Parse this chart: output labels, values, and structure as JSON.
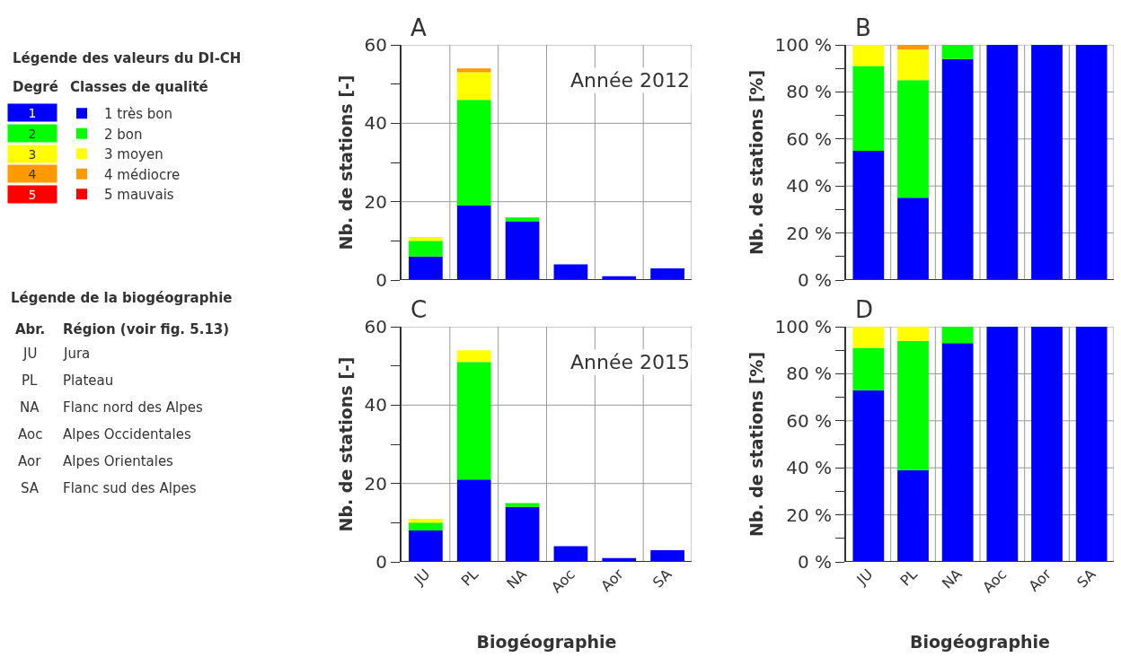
{
  "chart_data": [
    {
      "type": "bar",
      "title": "A",
      "subtitle": "Année 2012",
      "ylabel": "Nb. de stations [-]",
      "categories": [
        null,
        null,
        null,
        null,
        null,
        null
      ],
      "stacked": true,
      "grid": true,
      "legend": "left",
      "legend_title": "Légende des valeurs du DI-CH",
      "annotations": [
        "Degré",
        "Classes de qualité",
        "1",
        "2",
        "3",
        "4",
        "5",
        "Légende de la biogéographie",
        "Abr.",
        "Région (voir fig. 5.13)",
        "JU",
        "Jura",
        "PL",
        "Plateau",
        "NA",
        "Flanc nord des Alpes",
        "Aoc",
        "Alpes Occidentales",
        "Aor",
        "Alpes Orientales",
        "SA",
        "Flanc sud des Alpes"
      ],
      "ylim": [
        0,
        60
      ],
      "yticks": [
        0,
        {
          "value": 10,
          "label": null
        },
        20,
        {
          "value": 30,
          "label": null
        },
        40,
        {
          "value": 50,
          "label": null
        },
        60
      ],
      "series": [
        {
          "name": "1 très bon",
          "color": "#0000ff",
          "values": [
            6,
            19,
            15,
            4,
            1,
            3
          ]
        },
        {
          "name": "2 bon",
          "color": "#00ff00",
          "values": [
            4,
            27,
            1,
            null,
            null,
            null
          ]
        },
        {
          "name": "3 moyen",
          "color": "#ffff00",
          "values": [
            1,
            7,
            null,
            null,
            null,
            null
          ]
        },
        {
          "name": "4 médiocre",
          "color": "#ff9900",
          "values": [
            null,
            1,
            null,
            null,
            null,
            null
          ]
        },
        {
          "name": "5 mauvais",
          "color": "#ff0000",
          "values": [
            null,
            null,
            null,
            null,
            null,
            null
          ]
        }
      ]
    },
    {
      "type": "bar",
      "title": "B",
      "ylabel": "Nb. de stations [%]",
      "categories": [
        null,
        null,
        null,
        null,
        null,
        null
      ],
      "stacked": true,
      "grid": true,
      "ylim": [
        0,
        100
      ],
      "yticks": [
        {
          "value": 0,
          "label": "0 %"
        },
        {
          "value": 10,
          "label": null
        },
        {
          "value": 20,
          "label": "20 %"
        },
        {
          "value": 30,
          "label": null
        },
        {
          "value": 40,
          "label": "40 %"
        },
        {
          "value": 50,
          "label": null
        },
        {
          "value": 60,
          "label": "60 %"
        },
        {
          "value": 70,
          "label": null
        },
        {
          "value": 80,
          "label": "80 %"
        },
        {
          "value": 90,
          "label": null
        },
        {
          "value": 100,
          "label": "100 %"
        }
      ],
      "series": [
        {
          "color": "#0000ff",
          "values": [
            55,
            35,
            94,
            100,
            100,
            100
          ]
        },
        {
          "color": "#00ff00",
          "values": [
            36,
            50,
            6,
            null,
            null,
            null
          ]
        },
        {
          "color": "#ffff00",
          "values": [
            9,
            13,
            null,
            null,
            null,
            null
          ]
        },
        {
          "color": "#ff9900",
          "values": [
            null,
            2,
            null,
            null,
            null,
            null
          ]
        }
      ]
    },
    {
      "type": "bar",
      "title": "C",
      "subtitle": "Année 2015",
      "ylabel": "Nb. de stations [-]",
      "xlabel": "Biogéographie",
      "categories": [
        "JU",
        "PL",
        "NA",
        "Aoc",
        "Aor",
        "SA"
      ],
      "stacked": true,
      "grid": true,
      "ylim": [
        0,
        60
      ],
      "yticks": [
        0,
        {
          "value": 10,
          "label": null
        },
        20,
        {
          "value": 30,
          "label": null
        },
        40,
        {
          "value": 50,
          "label": null
        },
        60
      ],
      "series": [
        {
          "color": "#0000ff",
          "values": [
            8,
            21,
            14,
            4,
            1,
            3
          ]
        },
        {
          "color": "#00ff00",
          "values": [
            2,
            30,
            1,
            null,
            null,
            null
          ]
        },
        {
          "color": "#ffff00",
          "values": [
            1,
            3,
            null,
            null,
            null,
            null
          ]
        }
      ]
    },
    {
      "type": "bar",
      "title": "D",
      "ylabel": "Nb. de stations [%]",
      "xlabel": "Biogéographie",
      "categories": [
        "JU",
        "PL",
        "NA",
        "Aoc",
        "Aor",
        "SA"
      ],
      "stacked": true,
      "grid": true,
      "ylim": [
        0,
        100
      ],
      "yticks": [
        {
          "value": 0,
          "label": "0 %"
        },
        {
          "value": 10,
          "label": null
        },
        {
          "value": 20,
          "label": "20 %"
        },
        {
          "value": 30,
          "label": null
        },
        {
          "value": 40,
          "label": "40 %"
        },
        {
          "value": 50,
          "label": null
        },
        {
          "value": 60,
          "label": "60 %"
        },
        {
          "value": 70,
          "label": null
        },
        {
          "value": 80,
          "label": "80 %"
        },
        {
          "value": 90,
          "label": null
        },
        {
          "value": 100,
          "label": "100 %"
        }
      ],
      "series": [
        {
          "color": "#0000ff",
          "values": [
            73,
            39,
            93,
            100,
            100,
            100
          ]
        },
        {
          "color": "#00ff00",
          "values": [
            18,
            55,
            7,
            null,
            null,
            null
          ]
        },
        {
          "color": "#ffff00",
          "values": [
            9,
            6,
            null,
            null,
            null,
            null
          ]
        }
      ]
    }
  ]
}
